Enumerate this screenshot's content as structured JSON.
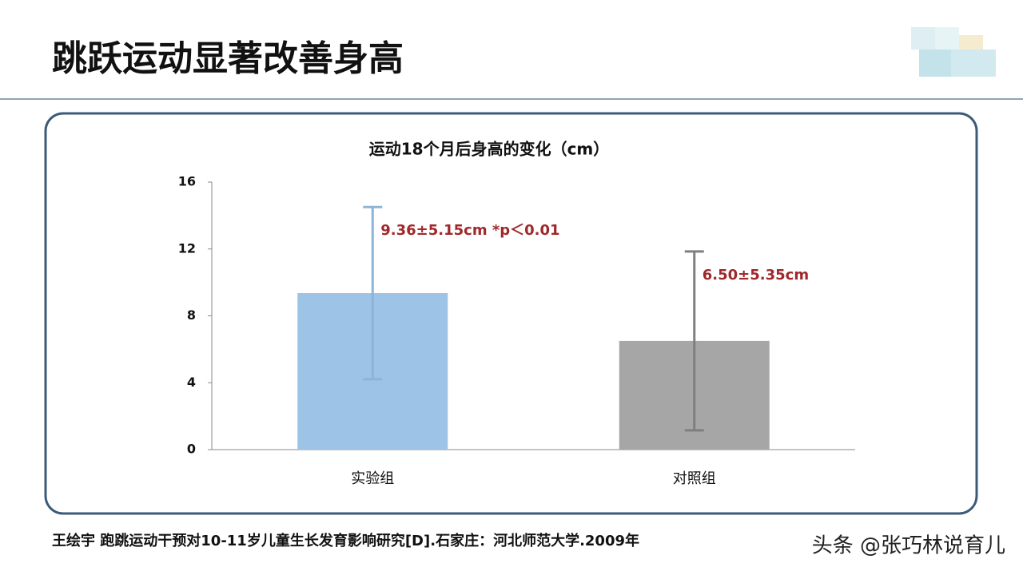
{
  "header": {
    "title": "跳跃运动显著改善身高"
  },
  "chart_data": {
    "type": "bar",
    "title": "运动18个月后身高的变化（cm）",
    "categories": [
      "实验组",
      "对照组"
    ],
    "values": [
      9.36,
      6.5
    ],
    "errors": [
      5.15,
      5.35
    ],
    "colors": [
      "#9dc3e6",
      "#a6a6a6"
    ],
    "error_colors": [
      "#8fb3d6",
      "#7f7f7f"
    ],
    "annotations": [
      "9.36±5.15cm *p＜0.01",
      "6.50±5.35cm"
    ],
    "annotation_color": "#a0282a",
    "ylim": [
      0,
      16
    ],
    "yticks": [
      0,
      4,
      8,
      12,
      16
    ],
    "grid": false
  },
  "footer": {
    "citation": "王绘宇 跑跳运动干预对10-11岁儿童生长发育影响研究[D].石家庄：河北师范大学.2009年",
    "watermark": "头条 @张巧林说育儿"
  }
}
